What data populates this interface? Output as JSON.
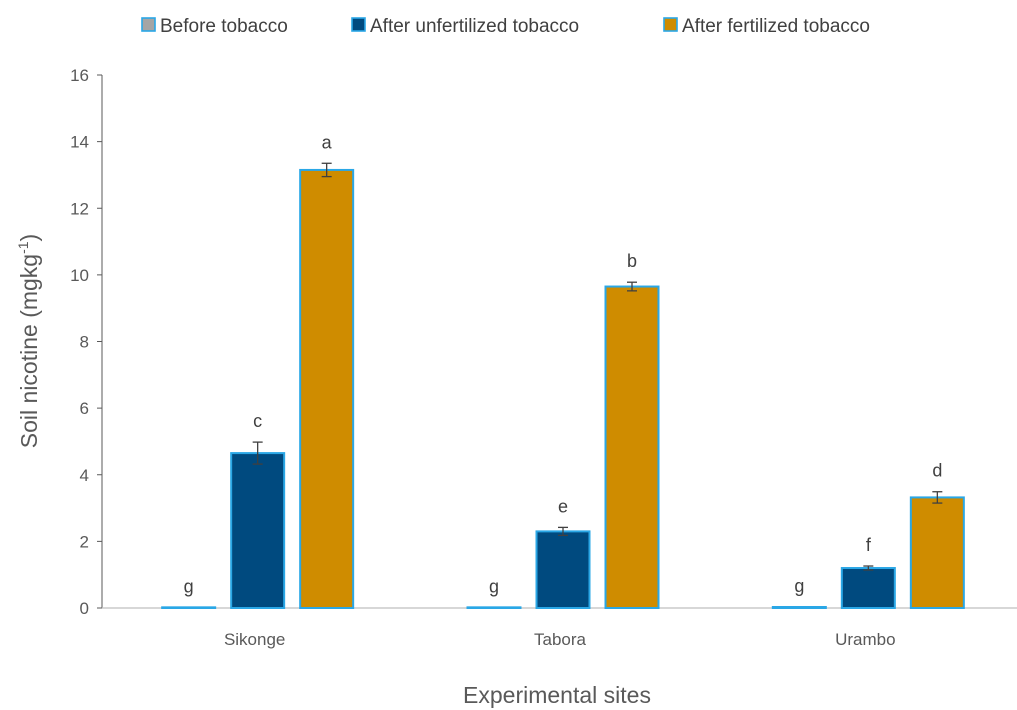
{
  "chart_data": {
    "type": "bar",
    "categories": [
      "Sikonge",
      "Tabora",
      "Urambo"
    ],
    "series": [
      {
        "name": "Before tobacco",
        "color": "#a5a5a5",
        "values": [
          0.02,
          0.02,
          0.03
        ],
        "errors": [
          0,
          0,
          0
        ],
        "labels": [
          "g",
          "g",
          "g"
        ]
      },
      {
        "name": "After unfertilized tobacco",
        "color": "#004a7f",
        "values": [
          4.65,
          2.3,
          1.2
        ],
        "errors": [
          0.33,
          0.12,
          0.06
        ],
        "labels": [
          "c",
          "e",
          "f"
        ]
      },
      {
        "name": "After fertilized tobacco",
        "color": "#cf8c00",
        "values": [
          13.15,
          9.65,
          3.32
        ],
        "errors": [
          0.2,
          0.13,
          0.17
        ],
        "labels": [
          "a",
          "b",
          "d"
        ]
      }
    ],
    "bar_outline_color": "#2aa7e6",
    "ylim": [
      0,
      16
    ],
    "yticks": [
      "0",
      "2",
      "4",
      "6",
      "8",
      "10",
      "12",
      "14",
      "16"
    ],
    "ylabel": "Soil nicotine (mgkg",
    "ylabel_sup": "-1",
    "ylabel_close": ")",
    "xlabel": "Experimental sites",
    "legend_position": "top",
    "grid": false
  }
}
